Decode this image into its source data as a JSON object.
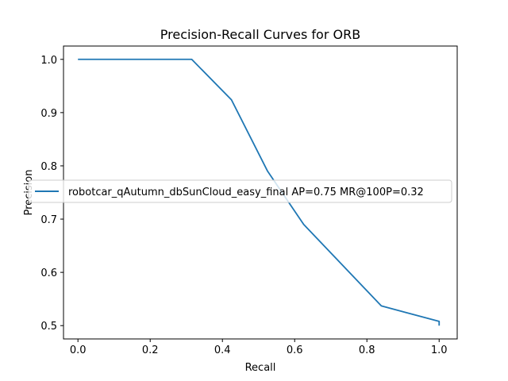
{
  "chart_data": {
    "type": "line",
    "title": "Precision-Recall Curves for ORB",
    "xlabel": "Recall",
    "ylabel": "Precision",
    "xlim": [
      -0.04,
      1.05
    ],
    "ylim": [
      0.475,
      1.025
    ],
    "xticks": [
      0.0,
      0.2,
      0.4,
      0.6,
      0.8,
      1.0
    ],
    "xtick_labels": [
      "0.0",
      "0.2",
      "0.4",
      "0.6",
      "0.8",
      "1.0"
    ],
    "yticks": [
      0.5,
      0.6,
      0.7,
      0.8,
      0.9,
      1.0
    ],
    "ytick_labels": [
      "0.5",
      "0.6",
      "0.7",
      "0.8",
      "0.9",
      "1.0"
    ],
    "grid": false,
    "legend": "center-left",
    "series": [
      {
        "name": "robotcar_qAutumn_dbSunCloud_easy_final AP=0.75 MR@100P=0.32",
        "color": "#1f77b4",
        "x": [
          0.0,
          0.315,
          0.425,
          0.525,
          0.625,
          0.84,
          1.0,
          1.0
        ],
        "y": [
          1.0,
          1.0,
          0.924,
          0.79,
          0.69,
          0.537,
          0.508,
          0.5
        ]
      }
    ]
  }
}
